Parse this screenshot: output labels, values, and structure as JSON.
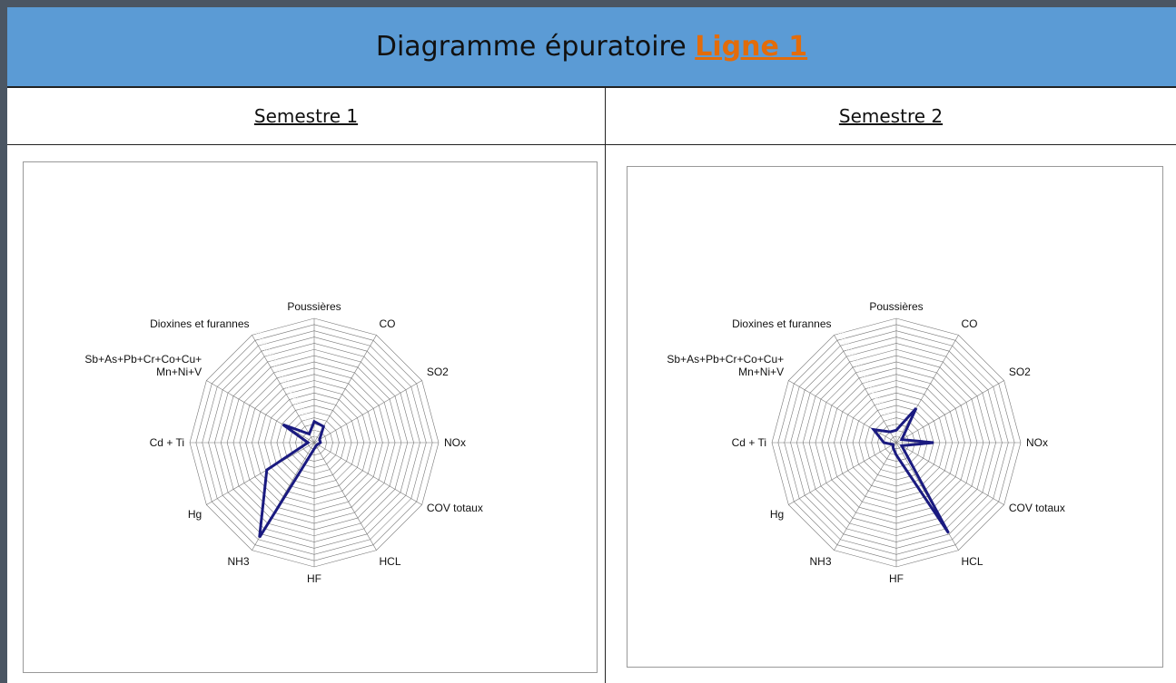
{
  "header": {
    "title": "Diagramme épuratoire",
    "link": "Ligne 1"
  },
  "columns": [
    "Semestre 1",
    "Semestre 2"
  ],
  "chart_data": [
    {
      "type": "radar",
      "categories": [
        "Poussières",
        "CO",
        "SO2",
        "NOx",
        "COV totaux",
        "HCL",
        "HF",
        "NH3",
        "Hg",
        "Cd + Ti",
        "Sb+As+Pb+Cr+Co+Cu+\nMn+Ni+V",
        "Dioxines et furannes"
      ],
      "series": [
        {
          "color": "#1a1a80",
          "values": [
            17,
            15,
            5,
            5,
            3,
            3,
            5,
            88,
            44,
            5,
            29,
            8
          ]
        }
      ],
      "ylim": [
        0,
        100
      ],
      "yticks": [
        0,
        5,
        10,
        15,
        20,
        25,
        30,
        35,
        40,
        45,
        50,
        55,
        60,
        65,
        70,
        75,
        80,
        85,
        90,
        95,
        100
      ],
      "grid": true
    },
    {
      "type": "radar",
      "categories": [
        "Poussières",
        "CO",
        "SO2",
        "NOx",
        "COV totaux",
        "HCL",
        "HF",
        "NH3",
        "Hg",
        "Cd + Ti",
        "Sb+As+Pb+Cr+Co+Cu+\nMn+Ni+V",
        "Dioxines et furannes"
      ],
      "series": [
        {
          "color": "#1a1a80",
          "values": [
            10,
            32,
            5,
            30,
            5,
            84,
            10,
            5,
            3,
            10,
            21,
            10
          ]
        }
      ],
      "ylim": [
        0,
        100
      ],
      "yticks": [
        0,
        5,
        10,
        15,
        20,
        25,
        30,
        35,
        40,
        45,
        50,
        55,
        60,
        65,
        70,
        75,
        80,
        85,
        90,
        95,
        100
      ],
      "grid": true
    }
  ]
}
